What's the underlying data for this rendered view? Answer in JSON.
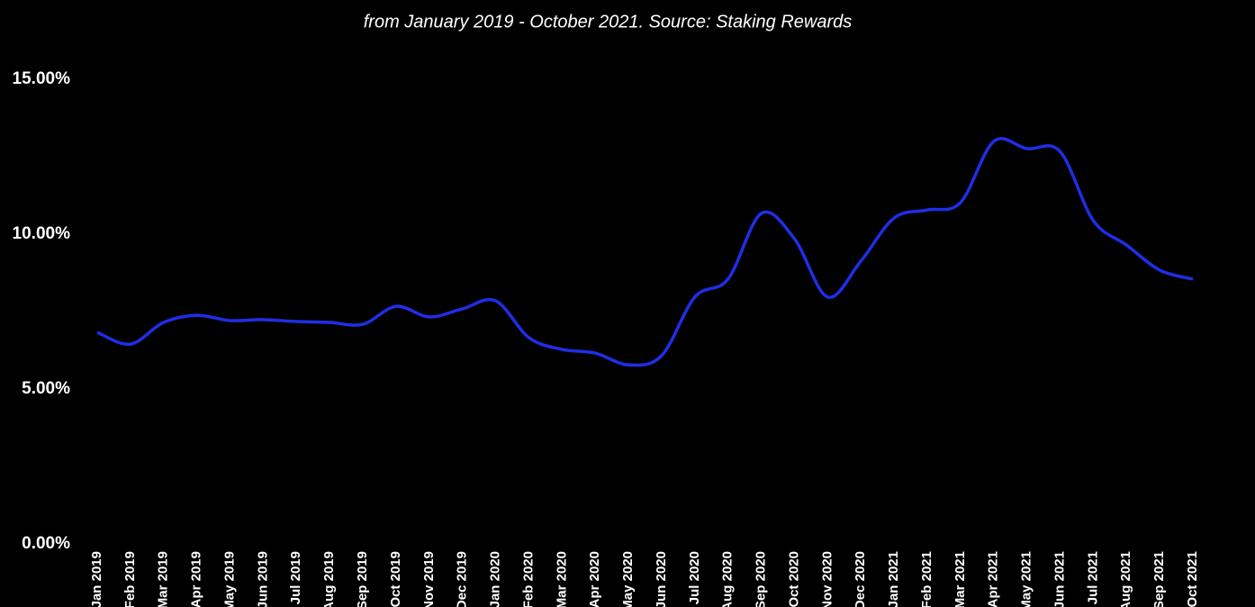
{
  "chart_data": {
    "type": "line",
    "subtitle": "from January 2019 - October 2021. Source: Staking Rewards",
    "categories": [
      "Jan 2019",
      "Feb 2019",
      "Mar 2019",
      "Apr 2019",
      "May 2019",
      "Jun 2019",
      "Jul 2019",
      "Aug 2019",
      "Sep 2019",
      "Oct 2019",
      "Nov 2019",
      "Dec 2019",
      "Jan 2020",
      "Feb 2020",
      "Mar 2020",
      "Apr 2020",
      "May 2020",
      "Jun 2020",
      "Jul 2020",
      "Aug 2020",
      "Sep 2020",
      "Oct 2020",
      "Nov 2020",
      "Dec 2020",
      "Jan 2021",
      "Feb 2021",
      "Mar 2021",
      "Apr 2021",
      "May 2021",
      "Jun 2021",
      "Jul 2021",
      "Aug 2021",
      "Sep 2021",
      "Oct 2021"
    ],
    "values": [
      6.83,
      6.45,
      7.15,
      7.38,
      7.21,
      7.24,
      7.18,
      7.15,
      7.09,
      7.67,
      7.33,
      7.59,
      7.85,
      6.66,
      6.28,
      6.16,
      5.78,
      6.08,
      7.97,
      8.55,
      10.67,
      9.85,
      7.97,
      9.13,
      10.52,
      10.78,
      11.02,
      12.99,
      12.76,
      12.67,
      10.44,
      9.65,
      8.84,
      8.55
    ],
    "color": "#1f2ee6",
    "ylim": [
      0,
      15
    ],
    "yticks": [
      {
        "value": 0,
        "label": "0.00%"
      },
      {
        "value": 5,
        "label": "5.00%"
      },
      {
        "value": 10,
        "label": "10.00%"
      },
      {
        "value": 15,
        "label": "15.00%"
      }
    ],
    "grid": false
  }
}
